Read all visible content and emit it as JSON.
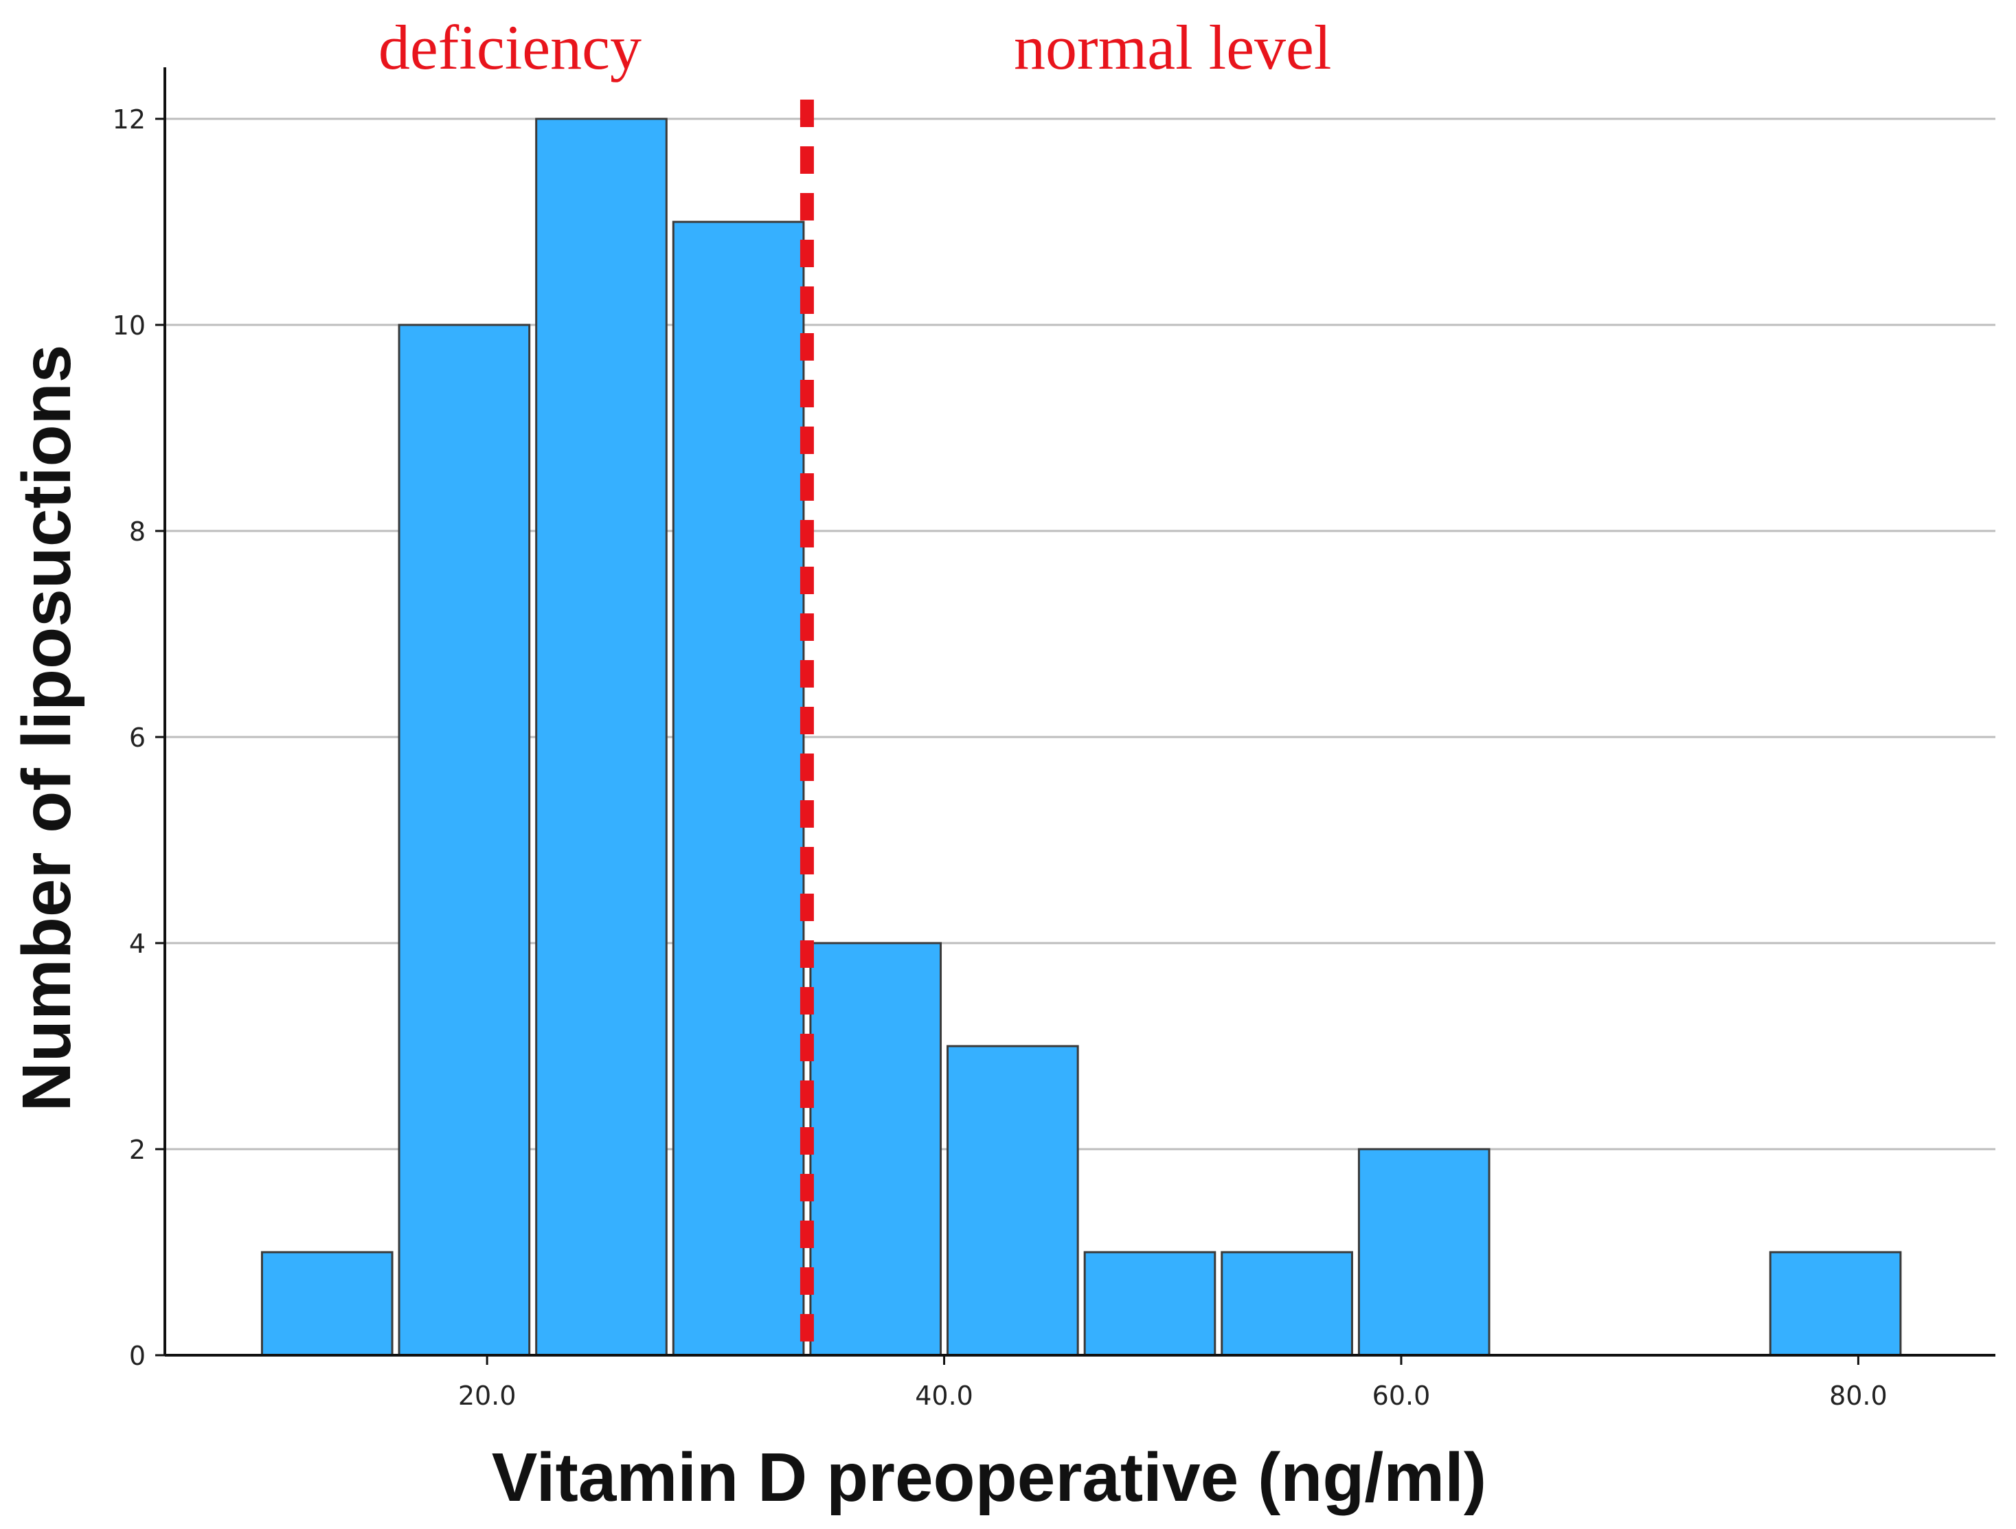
{
  "chart_data": {
    "type": "bar",
    "subtype": "histogram",
    "xlabel": "Vitamin D preoperative (ng/ml)",
    "ylabel": "Number of liposuctions",
    "bin_width": 6,
    "bins": [
      {
        "start": 10,
        "end": 16,
        "count": 1
      },
      {
        "start": 16,
        "end": 22,
        "count": 10
      },
      {
        "start": 22,
        "end": 28,
        "count": 12
      },
      {
        "start": 28,
        "end": 34,
        "count": 11
      },
      {
        "start": 34,
        "end": 40,
        "count": 4
      },
      {
        "start": 40,
        "end": 46,
        "count": 3
      },
      {
        "start": 46,
        "end": 52,
        "count": 1
      },
      {
        "start": 52,
        "end": 58,
        "count": 1
      },
      {
        "start": 58,
        "end": 64,
        "count": 2
      },
      {
        "start": 76,
        "end": 82,
        "count": 1
      }
    ],
    "xlim": [
      5.9,
      86
    ],
    "ylim": [
      0,
      12.5
    ],
    "x_ticks": [
      20,
      40,
      60,
      80
    ],
    "x_tick_labels": [
      "20.0",
      "40.0",
      "60.0",
      "80.0"
    ],
    "y_ticks": [
      0,
      2,
      4,
      6,
      8,
      10,
      12
    ],
    "y_tick_labels": [
      "0",
      "2",
      "4",
      "6",
      "8",
      "10",
      "12"
    ],
    "grid": "horizontal",
    "threshold": {
      "x": 34,
      "style": "dashed"
    },
    "annotations": [
      {
        "text": "deficiency",
        "x": 21,
        "color": "#e8141c"
      },
      {
        "text": "normal level",
        "x": 50,
        "color": "#e8141c"
      }
    ],
    "colors": {
      "bar_fill": "#36b0ff",
      "bar_stroke": "#3a3a3a",
      "threshold_line": "#e8141c",
      "grid": "#bdbdbd"
    }
  }
}
